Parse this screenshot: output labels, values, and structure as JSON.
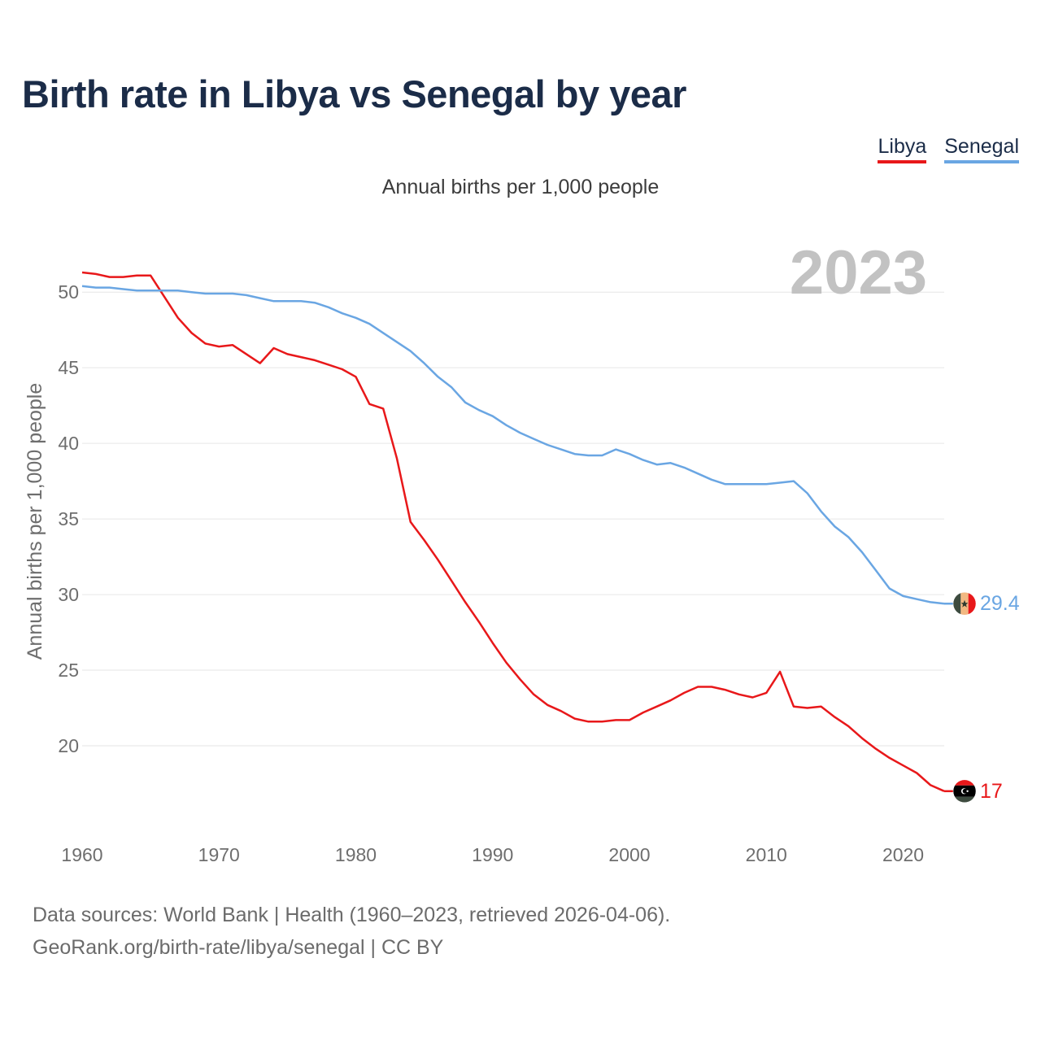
{
  "page": {
    "title": "Birth rate in Libya vs Senegal by year",
    "subtitle": "Annual births per 1,000 people",
    "footer_line1": "Data sources: World Bank | Health (1960–2023, retrieved 2026-04-06).",
    "footer_line2": "GeoRank.org/birth-rate/libya/senegal | CC BY"
  },
  "legend": [
    {
      "name": "Libya",
      "color": "#e8181a"
    },
    {
      "name": "Senegal",
      "color": "#6aa6e3"
    }
  ],
  "chart_data": {
    "type": "line",
    "title": "Birth rate in Libya vs Senegal by year",
    "ylabel": "Annual births per 1,000 people",
    "xlabel": "",
    "year_label": "2023",
    "xlim": [
      1960,
      2023
    ],
    "ylim": [
      15,
      52
    ],
    "x_ticks": [
      1960,
      1970,
      1980,
      1990,
      2000,
      2010,
      2020
    ],
    "y_ticks": [
      20,
      25,
      30,
      35,
      40,
      45,
      50
    ],
    "grid": true,
    "legend_position": "top-right",
    "x": [
      1960,
      1961,
      1962,
      1963,
      1964,
      1965,
      1966,
      1967,
      1968,
      1969,
      1970,
      1971,
      1972,
      1973,
      1974,
      1975,
      1976,
      1977,
      1978,
      1979,
      1980,
      1981,
      1982,
      1983,
      1984,
      1985,
      1986,
      1987,
      1988,
      1989,
      1990,
      1991,
      1992,
      1993,
      1994,
      1995,
      1996,
      1997,
      1998,
      1999,
      2000,
      2001,
      2002,
      2003,
      2004,
      2005,
      2006,
      2007,
      2008,
      2009,
      2010,
      2011,
      2012,
      2013,
      2014,
      2015,
      2016,
      2017,
      2018,
      2019,
      2020,
      2021,
      2022,
      2023
    ],
    "series": [
      {
        "name": "Libya",
        "color": "#e8181a",
        "end_label": "17",
        "flag": "libya",
        "values": [
          51.3,
          51.2,
          51.0,
          51.0,
          51.1,
          51.1,
          49.7,
          48.3,
          47.3,
          46.6,
          46.4,
          46.5,
          45.9,
          45.3,
          46.3,
          45.9,
          45.7,
          45.5,
          45.2,
          44.9,
          44.4,
          42.6,
          42.3,
          39.0,
          34.8,
          33.6,
          32.3,
          30.9,
          29.5,
          28.2,
          26.8,
          25.5,
          24.4,
          23.4,
          22.7,
          22.3,
          21.8,
          21.6,
          21.6,
          21.7,
          21.7,
          22.2,
          22.6,
          23.0,
          23.5,
          23.9,
          23.9,
          23.7,
          23.4,
          23.2,
          23.5,
          24.9,
          22.6,
          22.5,
          22.6,
          21.9,
          21.3,
          20.5,
          19.8,
          19.2,
          18.7,
          18.2,
          17.4,
          17.0
        ]
      },
      {
        "name": "Senegal",
        "color": "#6aa6e3",
        "end_label": "29.4",
        "flag": "senegal",
        "values": [
          50.4,
          50.3,
          50.3,
          50.2,
          50.1,
          50.1,
          50.1,
          50.1,
          50.0,
          49.9,
          49.9,
          49.9,
          49.8,
          49.6,
          49.4,
          49.4,
          49.4,
          49.3,
          49.0,
          48.6,
          48.3,
          47.9,
          47.3,
          46.7,
          46.1,
          45.3,
          44.4,
          43.7,
          42.7,
          42.2,
          41.8,
          41.2,
          40.7,
          40.3,
          39.9,
          39.6,
          39.3,
          39.2,
          39.2,
          39.6,
          39.3,
          38.9,
          38.6,
          38.7,
          38.4,
          38.0,
          37.6,
          37.3,
          37.3,
          37.3,
          37.3,
          37.4,
          37.5,
          36.7,
          35.5,
          34.5,
          33.8,
          32.8,
          31.6,
          30.4,
          29.9,
          29.7,
          29.5,
          29.4
        ]
      }
    ]
  }
}
